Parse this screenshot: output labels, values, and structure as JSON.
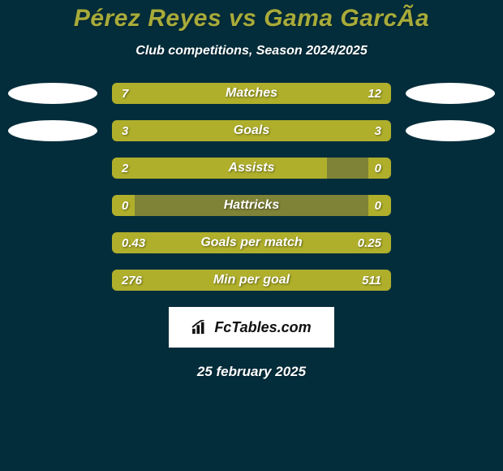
{
  "colors": {
    "page_background": "#042d3b",
    "title": "#a8ab39",
    "subtitle": "#ffffff",
    "oval": "#ffffff",
    "bar_track": "#7f8337",
    "bar_left": "#afaf2b",
    "bar_right": "#afaf2b",
    "bar_label": "#ffffff",
    "bar_value": "#ffffff",
    "logo_bg": "#ffffff",
    "logo_text": "#111111",
    "date": "#ffffff"
  },
  "title": "Pérez Reyes vs Gama GarcÃ­a",
  "subtitle": "Club competitions, Season 2024/2025",
  "rows": [
    {
      "label": "Matches",
      "left_value": "7",
      "right_value": "12",
      "left_pct": 37,
      "right_pct": 63,
      "show_ovals": true
    },
    {
      "label": "Goals",
      "left_value": "3",
      "right_value": "3",
      "left_pct": 50,
      "right_pct": 50,
      "show_ovals": true
    },
    {
      "label": "Assists",
      "left_value": "2",
      "right_value": "0",
      "left_pct": 77,
      "right_pct": 8,
      "show_ovals": false
    },
    {
      "label": "Hattricks",
      "left_value": "0",
      "right_value": "0",
      "left_pct": 8,
      "right_pct": 8,
      "show_ovals": false
    },
    {
      "label": "Goals per match",
      "left_value": "0.43",
      "right_value": "0.25",
      "left_pct": 63,
      "right_pct": 37,
      "show_ovals": false
    },
    {
      "label": "Min per goal",
      "left_value": "276",
      "right_value": "511",
      "left_pct": 35,
      "right_pct": 65,
      "show_ovals": false
    }
  ],
  "logo": {
    "text": "FcTables.com"
  },
  "date": "25 february 2025"
}
